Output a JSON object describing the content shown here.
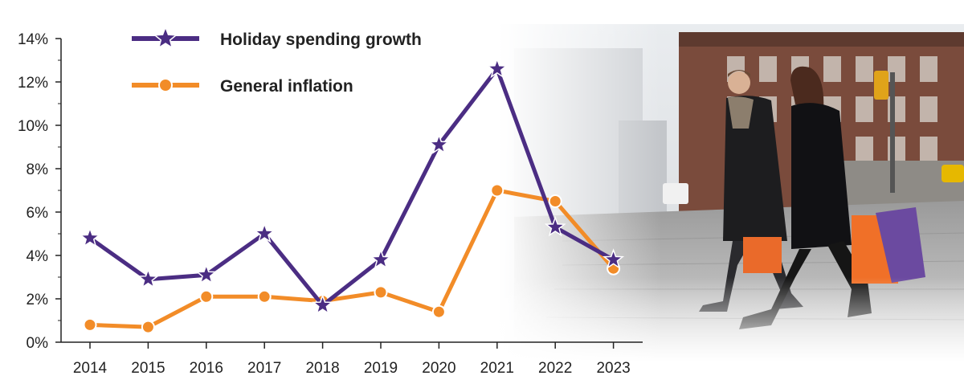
{
  "chart_data": {
    "type": "line",
    "categories": [
      "2014",
      "2015",
      "2016",
      "2017",
      "2018",
      "2019",
      "2020",
      "2021",
      "2022",
      "2023"
    ],
    "series": [
      {
        "name": "Holiday spending growth",
        "values": [
          4.8,
          2.9,
          3.1,
          5.0,
          1.7,
          3.8,
          9.1,
          12.6,
          5.3,
          3.8
        ],
        "color": "#4b2d83",
        "marker": "star"
      },
      {
        "name": "General inflation",
        "values": [
          0.8,
          0.7,
          2.1,
          2.1,
          1.9,
          2.3,
          1.4,
          7.0,
          6.5,
          3.4
        ],
        "color": "#f28c28",
        "marker": "circle"
      }
    ],
    "y_ticks": [
      "0%",
      "2%",
      "4%",
      "6%",
      "8%",
      "10%",
      "12%",
      "14%"
    ],
    "ylim": [
      0,
      14
    ],
    "title": "",
    "xlabel": "",
    "ylabel": "",
    "legend_position": "top-left",
    "grid": false
  },
  "photo": {
    "description_icon": "couple-shopping-photo"
  }
}
